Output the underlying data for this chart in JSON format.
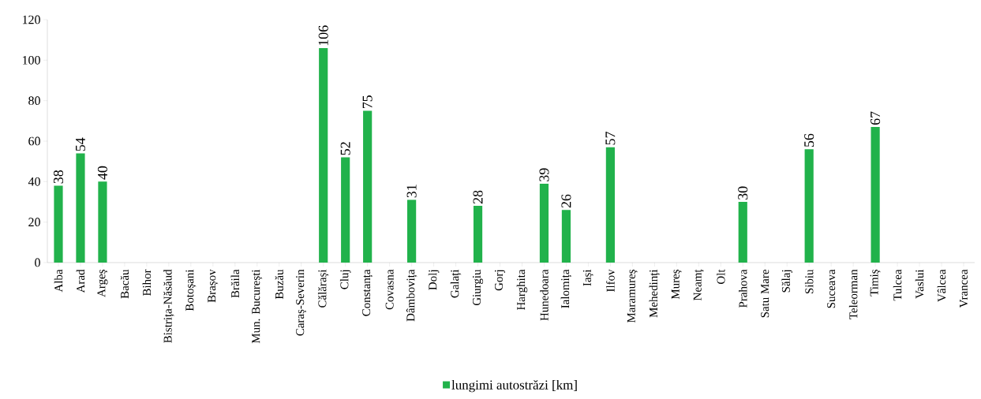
{
  "chart_data": {
    "type": "bar",
    "categories": [
      "Alba",
      "Arad",
      "Argeș",
      "Bacău",
      "Bihor",
      "Bistrița-Năsăud",
      "Botoșani",
      "Brașov",
      "Brăila",
      "Mun. București",
      "Buzău",
      "Caraș-Severin",
      "Călărași",
      "Cluj",
      "Constanța",
      "Covasna",
      "Dâmbovița",
      "Dolj",
      "Galați",
      "Giurgiu",
      "Gorj",
      "Harghita",
      "Hunedoara",
      "Ialomița",
      "Iași",
      "Ilfov",
      "Maramureș",
      "Mehedinți",
      "Mureș",
      "Neamț",
      "Olt",
      "Prahova",
      "Satu Mare",
      "Sălaj",
      "Sibiu",
      "Suceava",
      "Teleorman",
      "Timiș",
      "Tulcea",
      "Vaslui",
      "Vâlcea",
      "Vrancea"
    ],
    "series": [
      {
        "name": "lungimi autostrăzi [km]",
        "color": "#21b24b",
        "values": [
          38,
          54,
          40,
          0,
          0,
          0,
          0,
          0,
          0,
          0,
          0,
          0,
          106,
          52,
          75,
          0,
          31,
          0,
          0,
          28,
          0,
          0,
          39,
          26,
          0,
          57,
          0,
          0,
          0,
          0,
          0,
          30,
          0,
          0,
          56,
          0,
          0,
          67,
          0,
          0,
          0,
          0
        ],
        "value_labels": [
          "38",
          "54",
          "40",
          null,
          null,
          null,
          null,
          null,
          null,
          null,
          null,
          null,
          "106",
          "52",
          "75",
          null,
          "31",
          null,
          null,
          "28",
          null,
          null,
          "39",
          "26",
          null,
          "57",
          null,
          null,
          null,
          null,
          null,
          "30",
          null,
          null,
          "56",
          null,
          null,
          "67",
          null,
          null,
          null,
          null
        ]
      }
    ],
    "ylim": [
      0,
      120
    ],
    "yticks": [
      0,
      20,
      40,
      60,
      80,
      100,
      120
    ],
    "legend": "bottom"
  }
}
